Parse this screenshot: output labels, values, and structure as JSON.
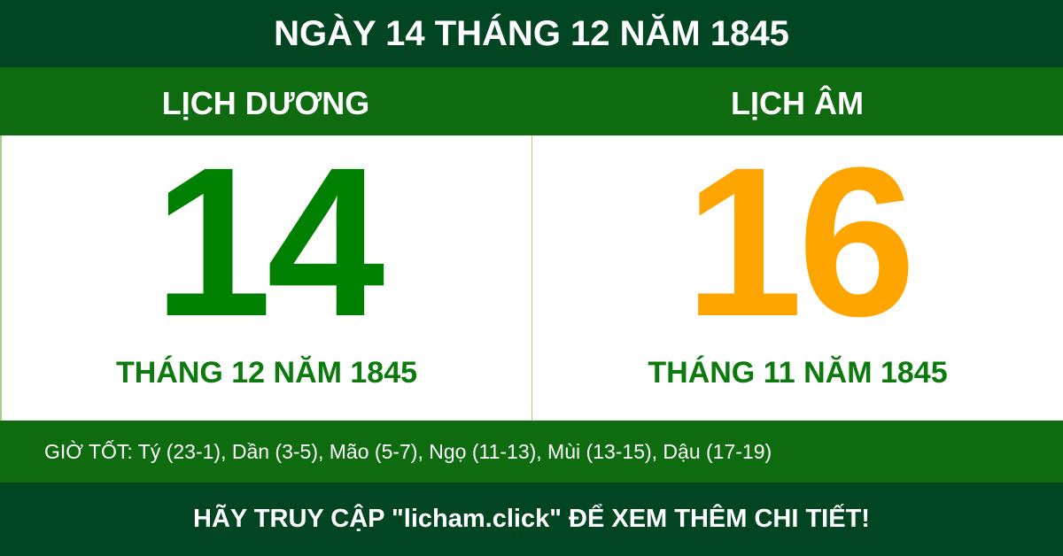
{
  "title": "NGÀY 14 THÁNG 12 NĂM 1845",
  "solar": {
    "label": "LỊCH DƯƠNG",
    "day": "14",
    "month_year": "THÁNG 12 NĂM 1845"
  },
  "lunar": {
    "label": "LỊCH ÂM",
    "day": "16",
    "month_year": "THÁNG 11 NĂM 1845"
  },
  "good_hours": "GIỜ TỐT: Tý (23-1), Dần (3-5), Mão (5-7), Ngọ (11-13), Mùi (13-15), Dậu (17-19)",
  "footer": "HÃY TRUY CẬP \"licham.click\" ĐỂ XEM THÊM CHI TIẾT!",
  "colors": {
    "dark_green": "#024522",
    "green": "#0f6b10",
    "solar_day": "#008000",
    "lunar_day": "#ffa500"
  }
}
